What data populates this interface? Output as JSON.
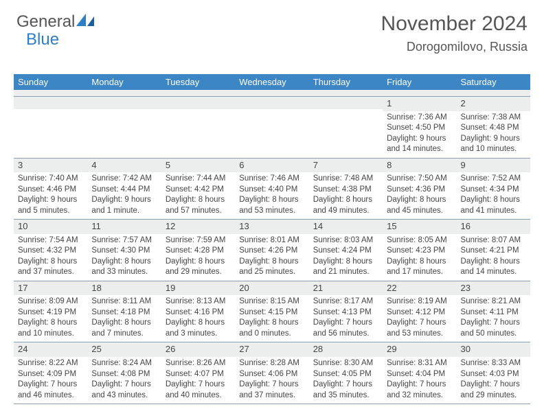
{
  "logo": {
    "text1": "General",
    "text2": "Blue"
  },
  "header": {
    "title": "November 2024",
    "location": "Dorogomilovo, Russia"
  },
  "colors": {
    "header_bg": "#3d86c6",
    "header_text": "#ffffff",
    "daynum_bg": "#eceded",
    "border": "#8aa0b2",
    "text": "#444444",
    "logo_accent": "#2d7ec4"
  },
  "dayNames": [
    "Sunday",
    "Monday",
    "Tuesday",
    "Wednesday",
    "Thursday",
    "Friday",
    "Saturday"
  ],
  "weeks": [
    [
      {},
      {},
      {},
      {},
      {},
      {
        "day": "1",
        "sunrise": "Sunrise: 7:36 AM",
        "sunset": "Sunset: 4:50 PM",
        "dl1": "Daylight: 9 hours",
        "dl2": "and 14 minutes."
      },
      {
        "day": "2",
        "sunrise": "Sunrise: 7:38 AM",
        "sunset": "Sunset: 4:48 PM",
        "dl1": "Daylight: 9 hours",
        "dl2": "and 10 minutes."
      }
    ],
    [
      {
        "day": "3",
        "sunrise": "Sunrise: 7:40 AM",
        "sunset": "Sunset: 4:46 PM",
        "dl1": "Daylight: 9 hours",
        "dl2": "and 5 minutes."
      },
      {
        "day": "4",
        "sunrise": "Sunrise: 7:42 AM",
        "sunset": "Sunset: 4:44 PM",
        "dl1": "Daylight: 9 hours",
        "dl2": "and 1 minute."
      },
      {
        "day": "5",
        "sunrise": "Sunrise: 7:44 AM",
        "sunset": "Sunset: 4:42 PM",
        "dl1": "Daylight: 8 hours",
        "dl2": "and 57 minutes."
      },
      {
        "day": "6",
        "sunrise": "Sunrise: 7:46 AM",
        "sunset": "Sunset: 4:40 PM",
        "dl1": "Daylight: 8 hours",
        "dl2": "and 53 minutes."
      },
      {
        "day": "7",
        "sunrise": "Sunrise: 7:48 AM",
        "sunset": "Sunset: 4:38 PM",
        "dl1": "Daylight: 8 hours",
        "dl2": "and 49 minutes."
      },
      {
        "day": "8",
        "sunrise": "Sunrise: 7:50 AM",
        "sunset": "Sunset: 4:36 PM",
        "dl1": "Daylight: 8 hours",
        "dl2": "and 45 minutes."
      },
      {
        "day": "9",
        "sunrise": "Sunrise: 7:52 AM",
        "sunset": "Sunset: 4:34 PM",
        "dl1": "Daylight: 8 hours",
        "dl2": "and 41 minutes."
      }
    ],
    [
      {
        "day": "10",
        "sunrise": "Sunrise: 7:54 AM",
        "sunset": "Sunset: 4:32 PM",
        "dl1": "Daylight: 8 hours",
        "dl2": "and 37 minutes."
      },
      {
        "day": "11",
        "sunrise": "Sunrise: 7:57 AM",
        "sunset": "Sunset: 4:30 PM",
        "dl1": "Daylight: 8 hours",
        "dl2": "and 33 minutes."
      },
      {
        "day": "12",
        "sunrise": "Sunrise: 7:59 AM",
        "sunset": "Sunset: 4:28 PM",
        "dl1": "Daylight: 8 hours",
        "dl2": "and 29 minutes."
      },
      {
        "day": "13",
        "sunrise": "Sunrise: 8:01 AM",
        "sunset": "Sunset: 4:26 PM",
        "dl1": "Daylight: 8 hours",
        "dl2": "and 25 minutes."
      },
      {
        "day": "14",
        "sunrise": "Sunrise: 8:03 AM",
        "sunset": "Sunset: 4:24 PM",
        "dl1": "Daylight: 8 hours",
        "dl2": "and 21 minutes."
      },
      {
        "day": "15",
        "sunrise": "Sunrise: 8:05 AM",
        "sunset": "Sunset: 4:23 PM",
        "dl1": "Daylight: 8 hours",
        "dl2": "and 17 minutes."
      },
      {
        "day": "16",
        "sunrise": "Sunrise: 8:07 AM",
        "sunset": "Sunset: 4:21 PM",
        "dl1": "Daylight: 8 hours",
        "dl2": "and 14 minutes."
      }
    ],
    [
      {
        "day": "17",
        "sunrise": "Sunrise: 8:09 AM",
        "sunset": "Sunset: 4:19 PM",
        "dl1": "Daylight: 8 hours",
        "dl2": "and 10 minutes."
      },
      {
        "day": "18",
        "sunrise": "Sunrise: 8:11 AM",
        "sunset": "Sunset: 4:18 PM",
        "dl1": "Daylight: 8 hours",
        "dl2": "and 7 minutes."
      },
      {
        "day": "19",
        "sunrise": "Sunrise: 8:13 AM",
        "sunset": "Sunset: 4:16 PM",
        "dl1": "Daylight: 8 hours",
        "dl2": "and 3 minutes."
      },
      {
        "day": "20",
        "sunrise": "Sunrise: 8:15 AM",
        "sunset": "Sunset: 4:15 PM",
        "dl1": "Daylight: 8 hours",
        "dl2": "and 0 minutes."
      },
      {
        "day": "21",
        "sunrise": "Sunrise: 8:17 AM",
        "sunset": "Sunset: 4:13 PM",
        "dl1": "Daylight: 7 hours",
        "dl2": "and 56 minutes."
      },
      {
        "day": "22",
        "sunrise": "Sunrise: 8:19 AM",
        "sunset": "Sunset: 4:12 PM",
        "dl1": "Daylight: 7 hours",
        "dl2": "and 53 minutes."
      },
      {
        "day": "23",
        "sunrise": "Sunrise: 8:21 AM",
        "sunset": "Sunset: 4:11 PM",
        "dl1": "Daylight: 7 hours",
        "dl2": "and 50 minutes."
      }
    ],
    [
      {
        "day": "24",
        "sunrise": "Sunrise: 8:22 AM",
        "sunset": "Sunset: 4:09 PM",
        "dl1": "Daylight: 7 hours",
        "dl2": "and 46 minutes."
      },
      {
        "day": "25",
        "sunrise": "Sunrise: 8:24 AM",
        "sunset": "Sunset: 4:08 PM",
        "dl1": "Daylight: 7 hours",
        "dl2": "and 43 minutes."
      },
      {
        "day": "26",
        "sunrise": "Sunrise: 8:26 AM",
        "sunset": "Sunset: 4:07 PM",
        "dl1": "Daylight: 7 hours",
        "dl2": "and 40 minutes."
      },
      {
        "day": "27",
        "sunrise": "Sunrise: 8:28 AM",
        "sunset": "Sunset: 4:06 PM",
        "dl1": "Daylight: 7 hours",
        "dl2": "and 37 minutes."
      },
      {
        "day": "28",
        "sunrise": "Sunrise: 8:30 AM",
        "sunset": "Sunset: 4:05 PM",
        "dl1": "Daylight: 7 hours",
        "dl2": "and 35 minutes."
      },
      {
        "day": "29",
        "sunrise": "Sunrise: 8:31 AM",
        "sunset": "Sunset: 4:04 PM",
        "dl1": "Daylight: 7 hours",
        "dl2": "and 32 minutes."
      },
      {
        "day": "30",
        "sunrise": "Sunrise: 8:33 AM",
        "sunset": "Sunset: 4:03 PM",
        "dl1": "Daylight: 7 hours",
        "dl2": "and 29 minutes."
      }
    ]
  ]
}
